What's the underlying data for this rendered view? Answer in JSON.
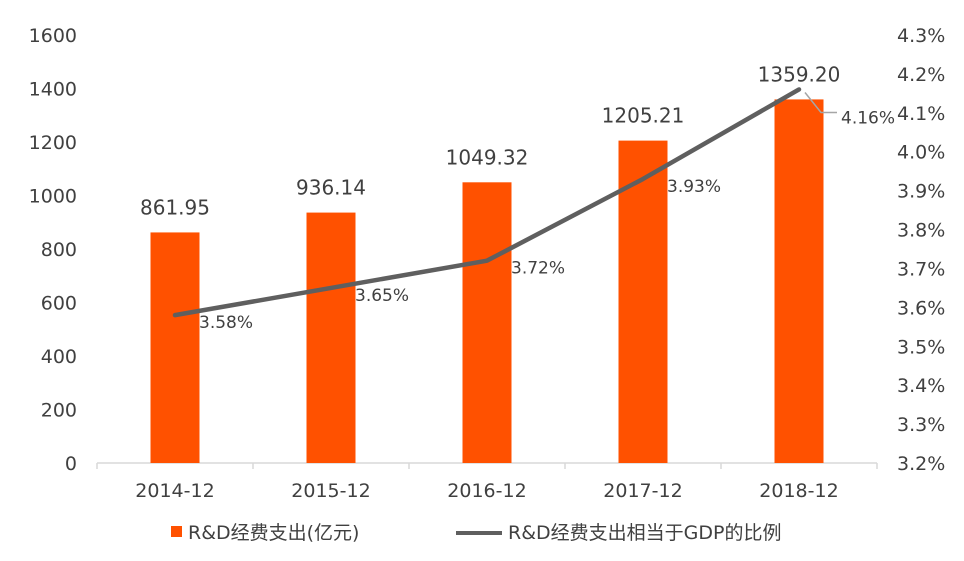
{
  "chart_data": {
    "type": "bar+line",
    "categories": [
      "2014-12",
      "2015-12",
      "2016-12",
      "2017-12",
      "2018-12"
    ],
    "series": [
      {
        "name": "R&D经费支出(亿元)",
        "type": "bar",
        "axis": "left",
        "values": [
          861.95,
          936.14,
          1049.32,
          1205.21,
          1359.2
        ],
        "labels": [
          "861.95",
          "936.14",
          "1049.32",
          "1205.21",
          "1359.20"
        ],
        "color": "#FF5100"
      },
      {
        "name": "R&D经费支出相当于GDP的比例",
        "type": "line",
        "axis": "right",
        "values": [
          3.58,
          3.65,
          3.72,
          3.93,
          4.16
        ],
        "labels": [
          "3.58%",
          "3.65%",
          "3.72%",
          "3.93%",
          "4.16%"
        ],
        "color": "#5F5F5F"
      }
    ],
    "y_left": {
      "min": 0,
      "max": 1600,
      "ticks": [
        "0",
        "200",
        "400",
        "600",
        "800",
        "1000",
        "1200",
        "1400",
        "1600"
      ]
    },
    "y_right": {
      "min": 3.2,
      "max": 4.3,
      "ticks": [
        "3.2%",
        "3.3%",
        "3.4%",
        "3.5%",
        "3.6%",
        "3.7%",
        "3.8%",
        "3.9%",
        "4.0%",
        "4.1%",
        "4.2%",
        "4.3%"
      ]
    },
    "grid": false,
    "legend_position": "bottom"
  }
}
